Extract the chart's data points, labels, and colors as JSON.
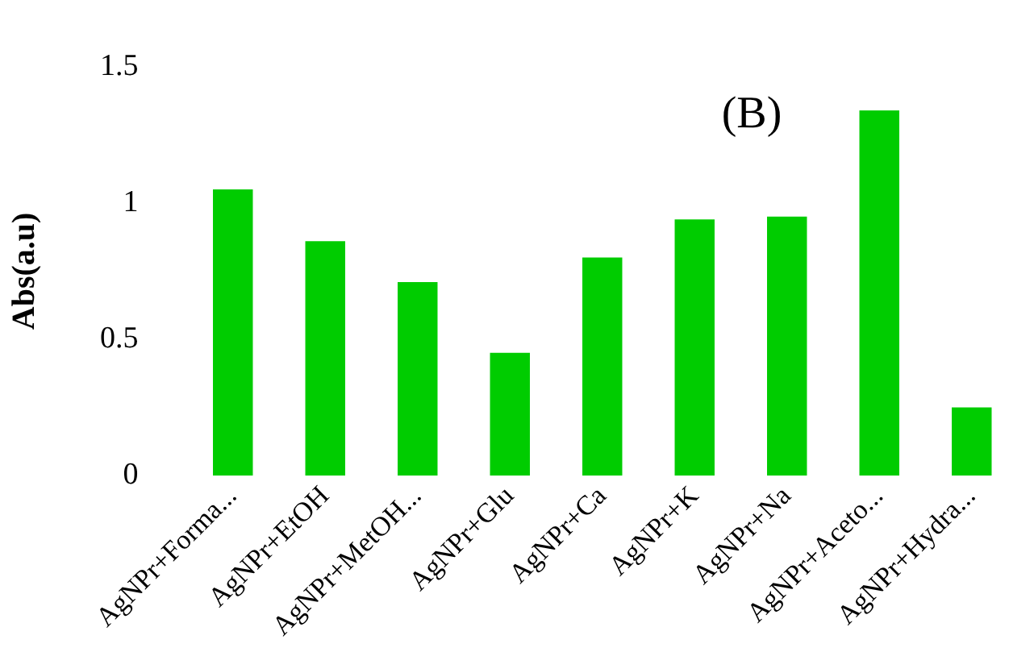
{
  "chart_data": {
    "type": "bar",
    "ylabel": "Abs(a.u)",
    "annotations": [
      "(B)"
    ],
    "categories": [
      "AgNPr+Forma...",
      "AgNPr+EtOH",
      "AgNPr+MetOH...",
      "AgNPr+Glu",
      "AgNPr+Ca",
      "AgNPr+K",
      "AgNPr+Na",
      "AgNPr+Aceto...",
      "AgNPr+Hydra..."
    ],
    "values": [
      1.05,
      0.86,
      0.71,
      0.45,
      0.8,
      0.94,
      0.95,
      1.34,
      0.25
    ],
    "color": "#00cc00",
    "ylim": [
      0,
      1.5
    ],
    "yticks": [
      0,
      0.5,
      1,
      1.5
    ],
    "grid": false,
    "legend": false
  }
}
